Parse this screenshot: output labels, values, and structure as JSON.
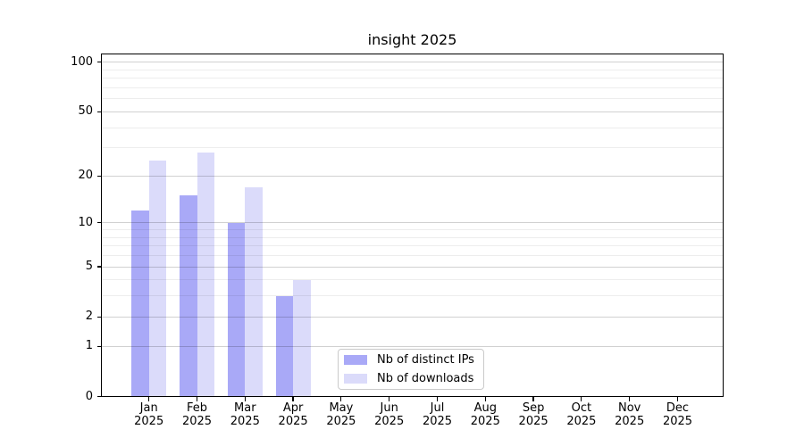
{
  "chart_data": {
    "type": "bar",
    "title": "insight 2025",
    "categories": [
      "Jan",
      "Feb",
      "Mar",
      "Apr",
      "May",
      "Jun",
      "Jul",
      "Aug",
      "Sep",
      "Oct",
      "Nov",
      "Dec"
    ],
    "x_year_label": "2025",
    "series": [
      {
        "name": "Nb of distinct IPs",
        "color": "#a9a9f7",
        "values": [
          12,
          15,
          10,
          3,
          0,
          0,
          0,
          0,
          0,
          0,
          0,
          0
        ]
      },
      {
        "name": "Nb of downloads",
        "color": "#dbdbfa",
        "values": [
          25,
          28,
          17,
          4,
          0,
          0,
          0,
          0,
          0,
          0,
          0,
          0
        ]
      }
    ],
    "yscale": "log1p",
    "ylim": [
      0,
      113
    ],
    "yticks": [
      0,
      1,
      2,
      5,
      10,
      20,
      50,
      100
    ],
    "yticks_minor": [
      3,
      4,
      6,
      7,
      8,
      9,
      30,
      40,
      60,
      70,
      80,
      90
    ],
    "grid": "horizontal-major-and-minor",
    "legend_position": "lower-center",
    "colors": {
      "axis": "#000000",
      "grid_major": "rgba(0,0,0,0.18)",
      "grid_minor": "rgba(0,0,0,0.07)",
      "legend_border": "#cacaca",
      "background": "#ffffff"
    }
  }
}
